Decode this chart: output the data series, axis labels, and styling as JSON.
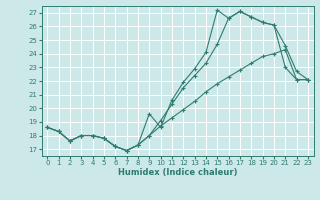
{
  "xlabel": "Humidex (Indice chaleur)",
  "xlim": [
    -0.5,
    23.5
  ],
  "ylim": [
    16.5,
    27.5
  ],
  "yticks": [
    17,
    18,
    19,
    20,
    21,
    22,
    23,
    24,
    25,
    26,
    27
  ],
  "xticks": [
    0,
    1,
    2,
    3,
    4,
    5,
    6,
    7,
    8,
    9,
    10,
    11,
    12,
    13,
    14,
    15,
    16,
    17,
    18,
    19,
    20,
    21,
    22,
    23
  ],
  "bg_color": "#cce8e8",
  "grid_color": "#b0d8d8",
  "line_color": "#2e7d6e",
  "lines": [
    {
      "x": [
        0,
        1,
        2,
        3,
        4,
        5,
        6,
        7,
        8,
        9,
        10,
        11,
        12,
        13,
        14,
        15,
        16,
        17,
        18,
        19,
        20,
        21,
        22,
        23
      ],
      "y": [
        18.6,
        18.3,
        17.6,
        18.0,
        18.0,
        17.8,
        17.2,
        16.9,
        17.3,
        19.6,
        18.6,
        20.6,
        21.9,
        22.9,
        24.1,
        27.2,
        26.6,
        27.1,
        26.7,
        26.3,
        26.1,
        24.6,
        22.7,
        22.1
      ]
    },
    {
      "x": [
        0,
        1,
        2,
        3,
        4,
        5,
        6,
        7,
        8,
        9,
        10,
        11,
        12,
        13,
        14,
        15,
        16,
        17,
        18,
        19,
        20,
        21,
        22,
        23
      ],
      "y": [
        18.6,
        18.3,
        17.6,
        18.0,
        18.0,
        17.8,
        17.2,
        16.9,
        17.3,
        18.0,
        19.1,
        20.3,
        21.5,
        22.4,
        23.3,
        24.7,
        26.6,
        27.1,
        26.7,
        26.3,
        26.1,
        23.0,
        22.1,
        22.1
      ]
    },
    {
      "x": [
        0,
        1,
        2,
        3,
        4,
        5,
        6,
        7,
        8,
        9,
        10,
        11,
        12,
        13,
        14,
        15,
        16,
        17,
        18,
        19,
        20,
        21,
        22,
        23
      ],
      "y": [
        18.6,
        18.3,
        17.6,
        18.0,
        18.0,
        17.8,
        17.2,
        16.9,
        17.3,
        18.0,
        18.7,
        19.3,
        19.9,
        20.5,
        21.2,
        21.8,
        22.3,
        22.8,
        23.3,
        23.8,
        24.0,
        24.3,
        22.1,
        22.1
      ]
    }
  ]
}
